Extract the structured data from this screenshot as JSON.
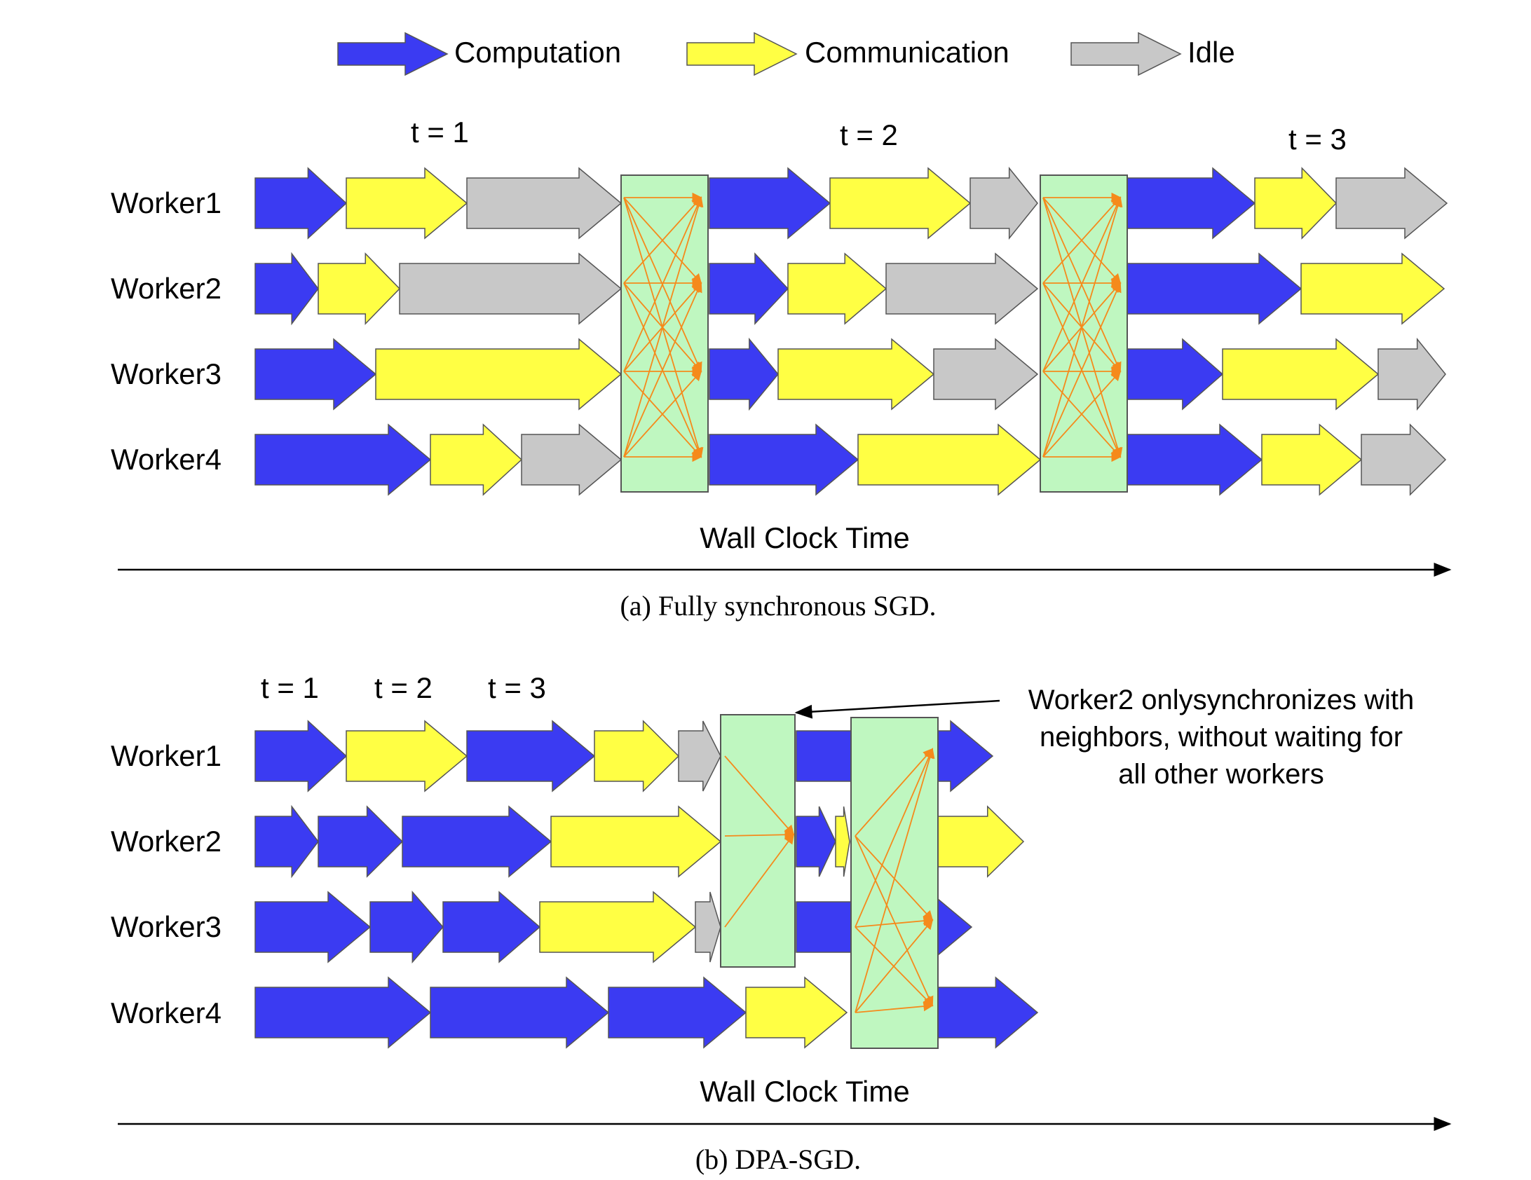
{
  "legend": {
    "computation": "Computation",
    "communication": "Communication",
    "idle": "Idle"
  },
  "colors": {
    "computation": "#3b3bf2",
    "communication": "#ffff44",
    "idle": "#c8c8c8",
    "sync_box": "#bff7c0",
    "link_arrow": "#f58a1b",
    "axis": "#000000"
  },
  "workers": [
    "Worker1",
    "Worker2",
    "Worker3",
    "Worker4"
  ],
  "panel_a": {
    "iterations": [
      "t = 1",
      "t = 2",
      "t = 3"
    ],
    "axis_label": "Wall Clock Time",
    "caption": "(a) Fully synchronous SGD."
  },
  "panel_b": {
    "iterations": [
      "t = 1",
      "t = 2",
      "t = 3"
    ],
    "axis_label": "Wall Clock Time",
    "annotation": [
      "Worker2 onlysynchronizes with",
      "neighbors, without waiting for",
      "all other workers"
    ],
    "caption": "(b) DPA-SGD."
  }
}
